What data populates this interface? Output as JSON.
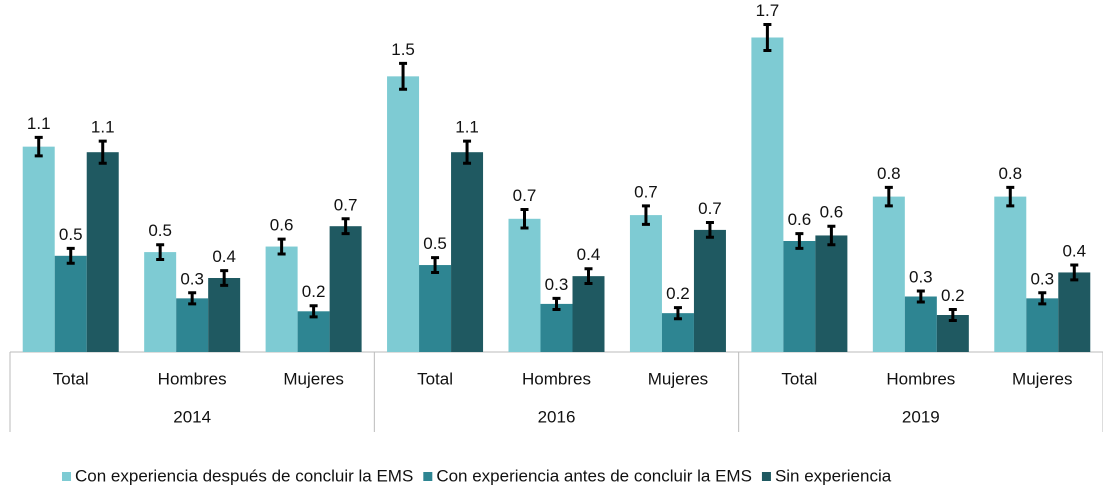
{
  "chart_data": {
    "type": "bar",
    "groups": [
      {
        "label": "2014",
        "categories": [
          "Total",
          "Hombres",
          "Mujeres"
        ]
      },
      {
        "label": "2016",
        "categories": [
          "Total",
          "Hombres",
          "Mujeres"
        ]
      },
      {
        "label": "2019",
        "categories": [
          "Total",
          "Hombres",
          "Mujeres"
        ]
      }
    ],
    "series": [
      {
        "name": "Con experiencia después de concluir la EMS",
        "color": "#7ecbd3",
        "values": [
          1.11,
          0.54,
          0.57,
          1.49,
          0.72,
          0.74,
          1.7,
          0.84,
          0.84
        ],
        "value_labels": [
          "1.1",
          "0.5",
          "0.6",
          "1.5",
          "0.7",
          "0.7",
          "1.7",
          "0.8",
          "0.8"
        ],
        "errors": [
          0.05,
          0.04,
          0.04,
          0.07,
          0.05,
          0.05,
          0.07,
          0.05,
          0.05
        ]
      },
      {
        "name": "Con experiencia antes de concluir la EMS",
        "color": "#2e8592",
        "values": [
          0.52,
          0.29,
          0.22,
          0.47,
          0.26,
          0.21,
          0.6,
          0.3,
          0.29
        ],
        "value_labels": [
          "0.5",
          "0.3",
          "0.2",
          "0.5",
          "0.3",
          "0.2",
          "0.6",
          "0.3",
          "0.3"
        ],
        "errors": [
          0.04,
          0.03,
          0.03,
          0.04,
          0.03,
          0.03,
          0.04,
          0.03,
          0.03
        ]
      },
      {
        "name": "Sin experiencia",
        "color": "#1f5961",
        "values": [
          1.08,
          0.4,
          0.68,
          1.08,
          0.41,
          0.66,
          0.63,
          0.2,
          0.43
        ],
        "value_labels": [
          "1.1",
          "0.4",
          "0.7",
          "1.1",
          "0.4",
          "0.7",
          "0.6",
          "0.2",
          "0.4"
        ],
        "errors": [
          0.06,
          0.04,
          0.04,
          0.06,
          0.04,
          0.04,
          0.05,
          0.03,
          0.04
        ]
      }
    ],
    "legend": "bottom"
  }
}
